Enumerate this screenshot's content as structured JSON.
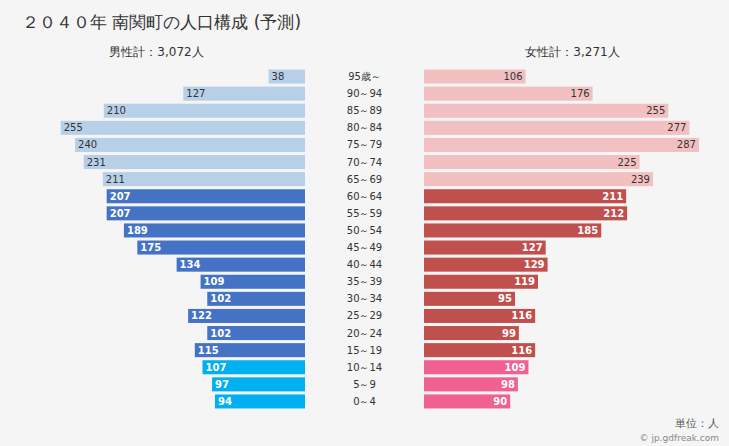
{
  "chart_data": {
    "type": "pyramid",
    "orientation": "horizontal",
    "title": "２０４０年 南関町の人口構成 (予測)",
    "annotations": [
      "単位：人",
      "© jp.gdfreak.com"
    ],
    "categories": [
      "95歳～",
      "90～94",
      "85～89",
      "80～84",
      "75～79",
      "70～74",
      "65～69",
      "60～64",
      "55～59",
      "50～54",
      "45～49",
      "40～44",
      "35～39",
      "30～34",
      "25～29",
      "20～24",
      "15～19",
      "10～14",
      "5～9",
      "0～4"
    ],
    "series": [
      {
        "name": "男性計：3,072人",
        "values": [
          38,
          127,
          210,
          255,
          240,
          231,
          211,
          207,
          207,
          189,
          175,
          134,
          109,
          102,
          122,
          102,
          115,
          107,
          97,
          94
        ],
        "colors": [
          "#b8cfe8",
          "#b8cfe8",
          "#b8cfe8",
          "#b8cfe8",
          "#b8cfe8",
          "#b8cfe8",
          "#b8cfe8",
          "#4472c4",
          "#4472c4",
          "#4472c4",
          "#4472c4",
          "#4472c4",
          "#4472c4",
          "#4472c4",
          "#4472c4",
          "#4472c4",
          "#4472c4",
          "#00b0f0",
          "#00b0f0",
          "#00b0f0"
        ]
      },
      {
        "name": "女性計：3,271人",
        "values": [
          106,
          176,
          255,
          277,
          287,
          225,
          239,
          211,
          212,
          185,
          127,
          129,
          119,
          95,
          116,
          99,
          116,
          109,
          98,
          90
        ],
        "colors": [
          "#f2c0c0",
          "#f2c0c0",
          "#f2c0c0",
          "#f2c0c0",
          "#f2c0c0",
          "#f2c0c0",
          "#f2c0c0",
          "#c0504d",
          "#c0504d",
          "#c0504d",
          "#c0504d",
          "#c0504d",
          "#c0504d",
          "#c0504d",
          "#c0504d",
          "#c0504d",
          "#c0504d",
          "#f06090",
          "#f06090",
          "#f06090"
        ]
      }
    ],
    "xlim": [
      0,
      310
    ],
    "data_labels": true,
    "tick_labels": false,
    "grid": false
  }
}
